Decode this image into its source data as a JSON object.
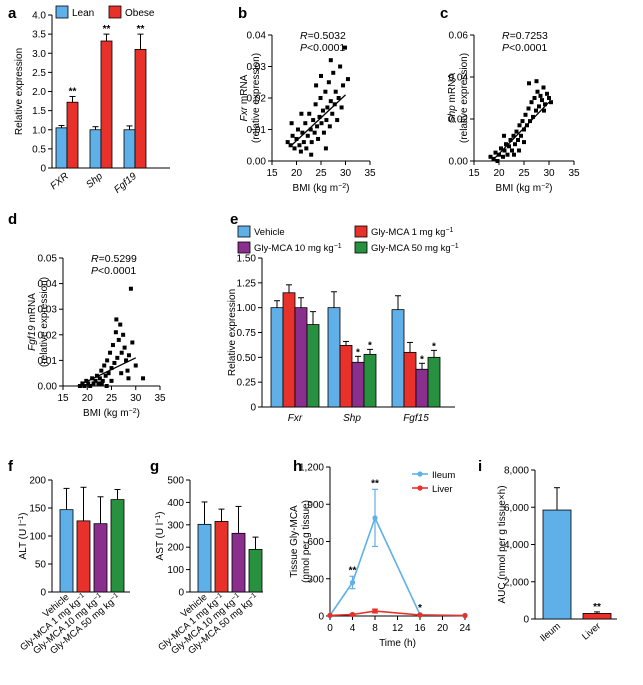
{
  "colors": {
    "blue": "#5fb0e8",
    "red": "#e8312a",
    "purple": "#8b2f8e",
    "green": "#27913f",
    "black": "#000000"
  },
  "panels": {
    "a": "a",
    "b": "b",
    "c": "c",
    "d": "d",
    "e": "e",
    "f": "f",
    "g": "g",
    "h": "h",
    "i": "i"
  },
  "chart_data": [
    {
      "id": "a",
      "type": "bar",
      "ylabel": "Relative expression",
      "ylim": [
        0,
        4
      ],
      "yticks": [
        0,
        0.5,
        1.0,
        1.5,
        2.0,
        2.5,
        3.0,
        3.5,
        4.0
      ],
      "ytick_labels": [
        "0",
        "0.5",
        "1.0",
        "1.5",
        "2.0",
        "2.5",
        "3.0",
        "3.5",
        "4.0"
      ],
      "categories": [
        "FXR",
        "Shp",
        "Fgf19"
      ],
      "series": [
        {
          "name": "Lean",
          "color": "#5fb0e8",
          "values": [
            1.05,
            1.0,
            1.0
          ],
          "errors": [
            0.06,
            0.08,
            0.1
          ],
          "sig": [
            "",
            "",
            ""
          ]
        },
        {
          "name": "Obese",
          "color": "#e8312a",
          "values": [
            1.72,
            3.32,
            3.1
          ],
          "errors": [
            0.15,
            0.18,
            0.4
          ],
          "sig": [
            "**",
            "**",
            "**"
          ]
        }
      ]
    },
    {
      "id": "b",
      "type": "scatter",
      "ylabel": "Fxr mRNA",
      "ylabel2": "(relative expression)",
      "xlabel": "BMI (kg m",
      "xlabel_sup": "−2",
      "xlabel_end": ")",
      "xlim": [
        15,
        35
      ],
      "ylim": [
        0,
        0.04
      ],
      "xticks": [
        15,
        20,
        25,
        30,
        35
      ],
      "xtick_labels": [
        "15",
        "20",
        "25",
        "30",
        "35"
      ],
      "yticks": [
        0,
        0.01,
        0.02,
        0.03,
        0.04
      ],
      "ytick_labels": [
        "0.00",
        "0.01",
        "0.02",
        "0.03",
        "0.04"
      ],
      "r_text": "R=0.5032",
      "p_text": "P<0.0001",
      "fit": [
        [
          19,
          0.005
        ],
        [
          30,
          0.021
        ]
      ],
      "points": [
        [
          18.2,
          0.006
        ],
        [
          18.8,
          0.005
        ],
        [
          19.2,
          0.008
        ],
        [
          19.6,
          0.004
        ],
        [
          20.0,
          0.007
        ],
        [
          20.3,
          0.01
        ],
        [
          20.6,
          0.005
        ],
        [
          20.9,
          0.003
        ],
        [
          21.2,
          0.009
        ],
        [
          21.5,
          0.006
        ],
        [
          21.8,
          0.012
        ],
        [
          22.0,
          0.004
        ],
        [
          22.3,
          0.008
        ],
        [
          22.6,
          0.015
        ],
        [
          22.9,
          0.01
        ],
        [
          23.1,
          0.006
        ],
        [
          23.4,
          0.013
        ],
        [
          23.7,
          0.009
        ],
        [
          23.9,
          0.018
        ],
        [
          24.2,
          0.011
        ],
        [
          24.4,
          0.007
        ],
        [
          24.7,
          0.014
        ],
        [
          24.9,
          0.02
        ],
        [
          25.1,
          0.012
        ],
        [
          25.4,
          0.016
        ],
        [
          25.6,
          0.009
        ],
        [
          25.9,
          0.022
        ],
        [
          26.1,
          0.013
        ],
        [
          26.3,
          0.017
        ],
        [
          26.6,
          0.025
        ],
        [
          26.8,
          0.011
        ],
        [
          27.0,
          0.019
        ],
        [
          27.3,
          0.015
        ],
        [
          27.5,
          0.028
        ],
        [
          27.8,
          0.018
        ],
        [
          28.0,
          0.022
        ],
        [
          28.3,
          0.013
        ],
        [
          28.6,
          0.02
        ],
        [
          28.9,
          0.03
        ],
        [
          29.2,
          0.017
        ],
        [
          29.5,
          0.024
        ],
        [
          29.9,
          0.036
        ],
        [
          30.5,
          0.026
        ],
        [
          19.0,
          0.012
        ],
        [
          21.0,
          0.015
        ],
        [
          23.0,
          0.002
        ],
        [
          24.0,
          0.024
        ],
        [
          26.0,
          0.004
        ],
        [
          27.0,
          0.032
        ],
        [
          25.0,
          0.027
        ]
      ]
    },
    {
      "id": "c",
      "type": "scatter",
      "ylabel": "Shp mRNA",
      "ylabel2": "(relative expression)",
      "xlabel": "BMI (kg m",
      "xlabel_sup": "−2",
      "xlabel_end": ")",
      "xlim": [
        15,
        35
      ],
      "ylim": [
        0,
        0.06
      ],
      "xticks": [
        15,
        20,
        25,
        30,
        35
      ],
      "xtick_labels": [
        "15",
        "20",
        "25",
        "30",
        "35"
      ],
      "yticks": [
        0,
        0.02,
        0.04,
        0.06
      ],
      "ytick_labels": [
        "0.00",
        "0.02",
        "0.04",
        "0.06"
      ],
      "r_text": "R=0.7253",
      "p_text": "P<0.0001",
      "fit": [
        [
          19,
          0.001
        ],
        [
          30,
          0.028
        ]
      ],
      "points": [
        [
          18.3,
          0.002
        ],
        [
          18.9,
          0.001
        ],
        [
          19.3,
          0.004
        ],
        [
          19.7,
          0.0
        ],
        [
          20.0,
          0.003
        ],
        [
          20.4,
          0.006
        ],
        [
          20.8,
          0.002
        ],
        [
          21.1,
          0.005
        ],
        [
          21.4,
          0.008
        ],
        [
          21.7,
          0.003
        ],
        [
          22.0,
          0.007
        ],
        [
          22.3,
          0.01
        ],
        [
          22.6,
          0.005
        ],
        [
          22.9,
          0.012
        ],
        [
          23.2,
          0.008
        ],
        [
          23.5,
          0.014
        ],
        [
          23.8,
          0.01
        ],
        [
          24.1,
          0.017
        ],
        [
          24.4,
          0.012
        ],
        [
          24.7,
          0.019
        ],
        [
          25.0,
          0.015
        ],
        [
          25.3,
          0.022
        ],
        [
          25.6,
          0.017
        ],
        [
          25.9,
          0.025
        ],
        [
          26.2,
          0.019
        ],
        [
          26.5,
          0.028
        ],
        [
          26.8,
          0.021
        ],
        [
          27.1,
          0.03
        ],
        [
          27.4,
          0.024
        ],
        [
          27.7,
          0.033
        ],
        [
          28.0,
          0.026
        ],
        [
          28.3,
          0.031
        ],
        [
          28.6,
          0.029
        ],
        [
          28.9,
          0.035
        ],
        [
          29.2,
          0.027
        ],
        [
          29.6,
          0.032
        ],
        [
          30.0,
          0.03
        ],
        [
          30.4,
          0.028
        ],
        [
          26.0,
          0.037
        ],
        [
          27.5,
          0.038
        ],
        [
          24.0,
          0.005
        ],
        [
          21.0,
          0.012
        ],
        [
          25.0,
          0.009
        ],
        [
          29.0,
          0.024
        ],
        [
          23.0,
          0.003
        ]
      ]
    },
    {
      "id": "d",
      "type": "scatter",
      "ylabel": "Fgf19 mRNA",
      "ylabel2": "(relative expression)",
      "xlabel": "BMI (kg m",
      "xlabel_sup": "−2",
      "xlabel_end": ")",
      "xlim": [
        15,
        35
      ],
      "ylim": [
        0,
        0.05
      ],
      "xticks": [
        15,
        20,
        25,
        30,
        35
      ],
      "xtick_labels": [
        "15",
        "20",
        "25",
        "30",
        "35"
      ],
      "yticks": [
        0,
        0.01,
        0.02,
        0.03,
        0.04,
        0.05
      ],
      "ytick_labels": [
        "0.00",
        "0.01",
        "0.02",
        "0.03",
        "0.04",
        "0.05"
      ],
      "r_text": "R=0.5299",
      "p_text": "P<0.0001",
      "fit": [
        [
          18,
          0.0
        ],
        [
          30,
          0.011
        ]
      ],
      "points": [
        [
          18.5,
          0.0
        ],
        [
          19.0,
          0.001
        ],
        [
          19.4,
          0.0
        ],
        [
          19.8,
          0.002
        ],
        [
          20.2,
          0.001
        ],
        [
          20.6,
          0.0
        ],
        [
          21.0,
          0.003
        ],
        [
          21.3,
          0.001
        ],
        [
          21.7,
          0.002
        ],
        [
          22.0,
          0.004
        ],
        [
          22.3,
          0.001
        ],
        [
          22.6,
          0.003
        ],
        [
          22.9,
          0.006
        ],
        [
          23.2,
          0.002
        ],
        [
          23.5,
          0.008
        ],
        [
          23.8,
          0.004
        ],
        [
          24.1,
          0.01
        ],
        [
          24.4,
          0.005
        ],
        [
          24.7,
          0.013
        ],
        [
          25.0,
          0.007
        ],
        [
          25.3,
          0.016
        ],
        [
          25.6,
          0.009
        ],
        [
          25.9,
          0.021
        ],
        [
          26.2,
          0.011
        ],
        [
          26.5,
          0.018
        ],
        [
          26.8,
          0.024
        ],
        [
          27.1,
          0.013
        ],
        [
          27.4,
          0.02
        ],
        [
          27.7,
          0.015
        ],
        [
          28.0,
          0.01
        ],
        [
          28.3,
          0.006
        ],
        [
          28.6,
          0.012
        ],
        [
          29.0,
          0.038
        ],
        [
          29.3,
          0.017
        ],
        [
          30.0,
          0.008
        ],
        [
          31.5,
          0.003
        ],
        [
          26.0,
          0.026
        ],
        [
          27.0,
          0.005
        ],
        [
          25.0,
          0.002
        ],
        [
          24.0,
          0.0
        ],
        [
          23.0,
          0.001
        ],
        [
          28.5,
          0.003
        ]
      ]
    },
    {
      "id": "e",
      "type": "bar",
      "ylabel": "Relative expression",
      "ylim": [
        0,
        1.5
      ],
      "yticks": [
        0,
        0.25,
        0.5,
        0.75,
        1.0,
        1.25,
        1.5
      ],
      "ytick_labels": [
        "0",
        "0.25",
        "0.50",
        "0.75",
        "1.00",
        "1.25",
        "1.50"
      ],
      "categories": [
        "Fxr",
        "Shp",
        "Fgf15"
      ],
      "series": [
        {
          "name": "Vehicle",
          "color": "#5fb0e8",
          "values": [
            1.0,
            1.0,
            0.98
          ],
          "errors": [
            0.07,
            0.16,
            0.14
          ],
          "sig": [
            "",
            "",
            ""
          ]
        },
        {
          "name": "Gly-MCA 1 mg kg",
          "color": "#e8312a",
          "values": [
            1.15,
            0.62,
            0.55
          ],
          "errors": [
            0.08,
            0.04,
            0.1
          ],
          "sig": [
            "",
            "",
            ""
          ]
        },
        {
          "name": "Gly-MCA 10 mg kg",
          "color": "#8b2f8e",
          "values": [
            1.0,
            0.45,
            0.38
          ],
          "errors": [
            0.1,
            0.06,
            0.06
          ],
          "sig": [
            "",
            "*",
            "*"
          ]
        },
        {
          "name": "Gly-MCA 50 mg kg",
          "color": "#27913f",
          "values": [
            0.83,
            0.53,
            0.5
          ],
          "errors": [
            0.13,
            0.05,
            0.07
          ],
          "sig": [
            "",
            "*",
            "*"
          ]
        }
      ],
      "legend_sup": "−1"
    },
    {
      "id": "f",
      "type": "bar",
      "ylabel": "ALT (U l",
      "ylabel_sup": "−1",
      "ylabel_end": ")",
      "ylim": [
        0,
        200
      ],
      "yticks": [
        0,
        50,
        100,
        150,
        200
      ],
      "ytick_labels": [
        "0",
        "50",
        "100",
        "150",
        "200"
      ],
      "categories": [
        "Vehicle",
        "Gly-MCA 1 mg kg",
        "Gly-MCA 10 mg kg",
        "Gly-MCA 50 mg kg"
      ],
      "cat_sup": "−1",
      "values": [
        147,
        127,
        122,
        165
      ],
      "errors": [
        38,
        60,
        48,
        18
      ],
      "colors": [
        "#5fb0e8",
        "#e8312a",
        "#8b2f8e",
        "#27913f"
      ]
    },
    {
      "id": "g",
      "type": "bar",
      "ylabel": "AST (U l",
      "ylabel_sup": "−1",
      "ylabel_end": ")",
      "ylim": [
        0,
        500
      ],
      "yticks": [
        0,
        100,
        200,
        300,
        400,
        500
      ],
      "ytick_labels": [
        "0",
        "100",
        "200",
        "300",
        "400",
        "500"
      ],
      "categories": [
        "Vehicle",
        "Gly-MCA 1 mg kg",
        "Gly-MCA 10 mg kg",
        "Gly-MCA 50 mg kg"
      ],
      "cat_sup": "−1",
      "values": [
        302,
        315,
        262,
        190
      ],
      "errors": [
        100,
        55,
        120,
        55
      ],
      "colors": [
        "#5fb0e8",
        "#e8312a",
        "#8b2f8e",
        "#27913f"
      ]
    },
    {
      "id": "h",
      "type": "line",
      "ylabel": "Tissue Gly-MCA",
      "ylabel2": "(nmol per g tissue)",
      "xlabel": "Time (h)",
      "xlim": [
        0,
        24
      ],
      "ylim": [
        0,
        1200
      ],
      "xticks": [
        0,
        4,
        8,
        12,
        16,
        20,
        24
      ],
      "xtick_labels": [
        "0",
        "4",
        "8",
        "12",
        "16",
        "20",
        "24"
      ],
      "yticks": [
        0,
        300,
        600,
        900,
        1200
      ],
      "ytick_labels": [
        "0",
        "300",
        "600",
        "900",
        "1,200"
      ],
      "series": [
        {
          "name": "Ileum",
          "color": "#5fb0e8",
          "x": [
            0,
            4,
            8,
            16,
            24
          ],
          "y": [
            5,
            270,
            790,
            10,
            5
          ],
          "errors": [
            0,
            50,
            230,
            5,
            0
          ],
          "sig": [
            "",
            "**",
            "**",
            "*",
            ""
          ]
        },
        {
          "name": "Liver",
          "color": "#e8312a",
          "x": [
            0,
            4,
            8,
            16,
            24
          ],
          "y": [
            5,
            12,
            40,
            8,
            3
          ],
          "errors": [
            0,
            5,
            15,
            3,
            0
          ],
          "sig": [
            "",
            "",
            "",
            "",
            ""
          ]
        }
      ]
    },
    {
      "id": "i",
      "type": "bar",
      "ylabel": "AUC (nmol per g tissue×h)",
      "ylim": [
        0,
        8000
      ],
      "yticks": [
        0,
        2000,
        4000,
        6000,
        8000
      ],
      "ytick_labels": [
        "0",
        "2,000",
        "4,000",
        "6,000",
        "8,000"
      ],
      "categories": [
        "Ileum",
        "Liver"
      ],
      "values": [
        5850,
        300
      ],
      "errors": [
        1200,
        80
      ],
      "colors": [
        "#5fb0e8",
        "#e8312a"
      ],
      "sig": [
        "",
        "**"
      ]
    }
  ]
}
